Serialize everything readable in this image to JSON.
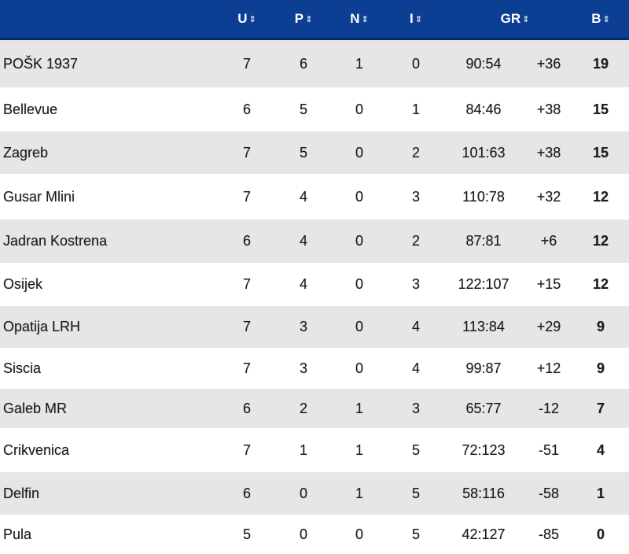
{
  "header": {
    "columns": [
      {
        "key": "u",
        "label": "U"
      },
      {
        "key": "p",
        "label": "P"
      },
      {
        "key": "n",
        "label": "N"
      },
      {
        "key": "i",
        "label": "I"
      },
      {
        "key": "gr",
        "label": "GR"
      },
      {
        "key": "b",
        "label": "B"
      }
    ],
    "sort_icon": "sort-arrows-icon"
  },
  "colors": {
    "header_bg": "#0c3e93",
    "row_alt_bg": "#e6e6e6",
    "row_bg": "#ffffff"
  },
  "rows": [
    {
      "team": "POŠK 1937",
      "u": "7",
      "p": "6",
      "n": "1",
      "i": "0",
      "gr": "90:54",
      "diff": "+36",
      "b": "19"
    },
    {
      "team": "Bellevue",
      "u": "6",
      "p": "5",
      "n": "0",
      "i": "1",
      "gr": "84:46",
      "diff": "+38",
      "b": "15"
    },
    {
      "team": "Zagreb",
      "u": "7",
      "p": "5",
      "n": "0",
      "i": "2",
      "gr": "101:63",
      "diff": "+38",
      "b": "15"
    },
    {
      "team": "Gusar Mlini",
      "u": "7",
      "p": "4",
      "n": "0",
      "i": "3",
      "gr": "110:78",
      "diff": "+32",
      "b": "12"
    },
    {
      "team": "Jadran Kostrena",
      "u": "6",
      "p": "4",
      "n": "0",
      "i": "2",
      "gr": "87:81",
      "diff": "+6",
      "b": "12"
    },
    {
      "team": "Osijek",
      "u": "7",
      "p": "4",
      "n": "0",
      "i": "3",
      "gr": "122:107",
      "diff": "+15",
      "b": "12"
    },
    {
      "team": "Opatija LRH",
      "u": "7",
      "p": "3",
      "n": "0",
      "i": "4",
      "gr": "113:84",
      "diff": "+29",
      "b": "9"
    },
    {
      "team": "Siscia",
      "u": "7",
      "p": "3",
      "n": "0",
      "i": "4",
      "gr": "99:87",
      "diff": "+12",
      "b": "9"
    },
    {
      "team": "Galeb MR",
      "u": "6",
      "p": "2",
      "n": "1",
      "i": "3",
      "gr": "65:77",
      "diff": "-12",
      "b": "7"
    },
    {
      "team": "Crikvenica",
      "u": "7",
      "p": "1",
      "n": "1",
      "i": "5",
      "gr": "72:123",
      "diff": "-51",
      "b": "4"
    },
    {
      "team": "Delfin",
      "u": "6",
      "p": "0",
      "n": "1",
      "i": "5",
      "gr": "58:116",
      "diff": "-58",
      "b": "1"
    },
    {
      "team": "Pula",
      "u": "5",
      "p": "0",
      "n": "0",
      "i": "5",
      "gr": "42:127",
      "diff": "-85",
      "b": "0"
    }
  ]
}
